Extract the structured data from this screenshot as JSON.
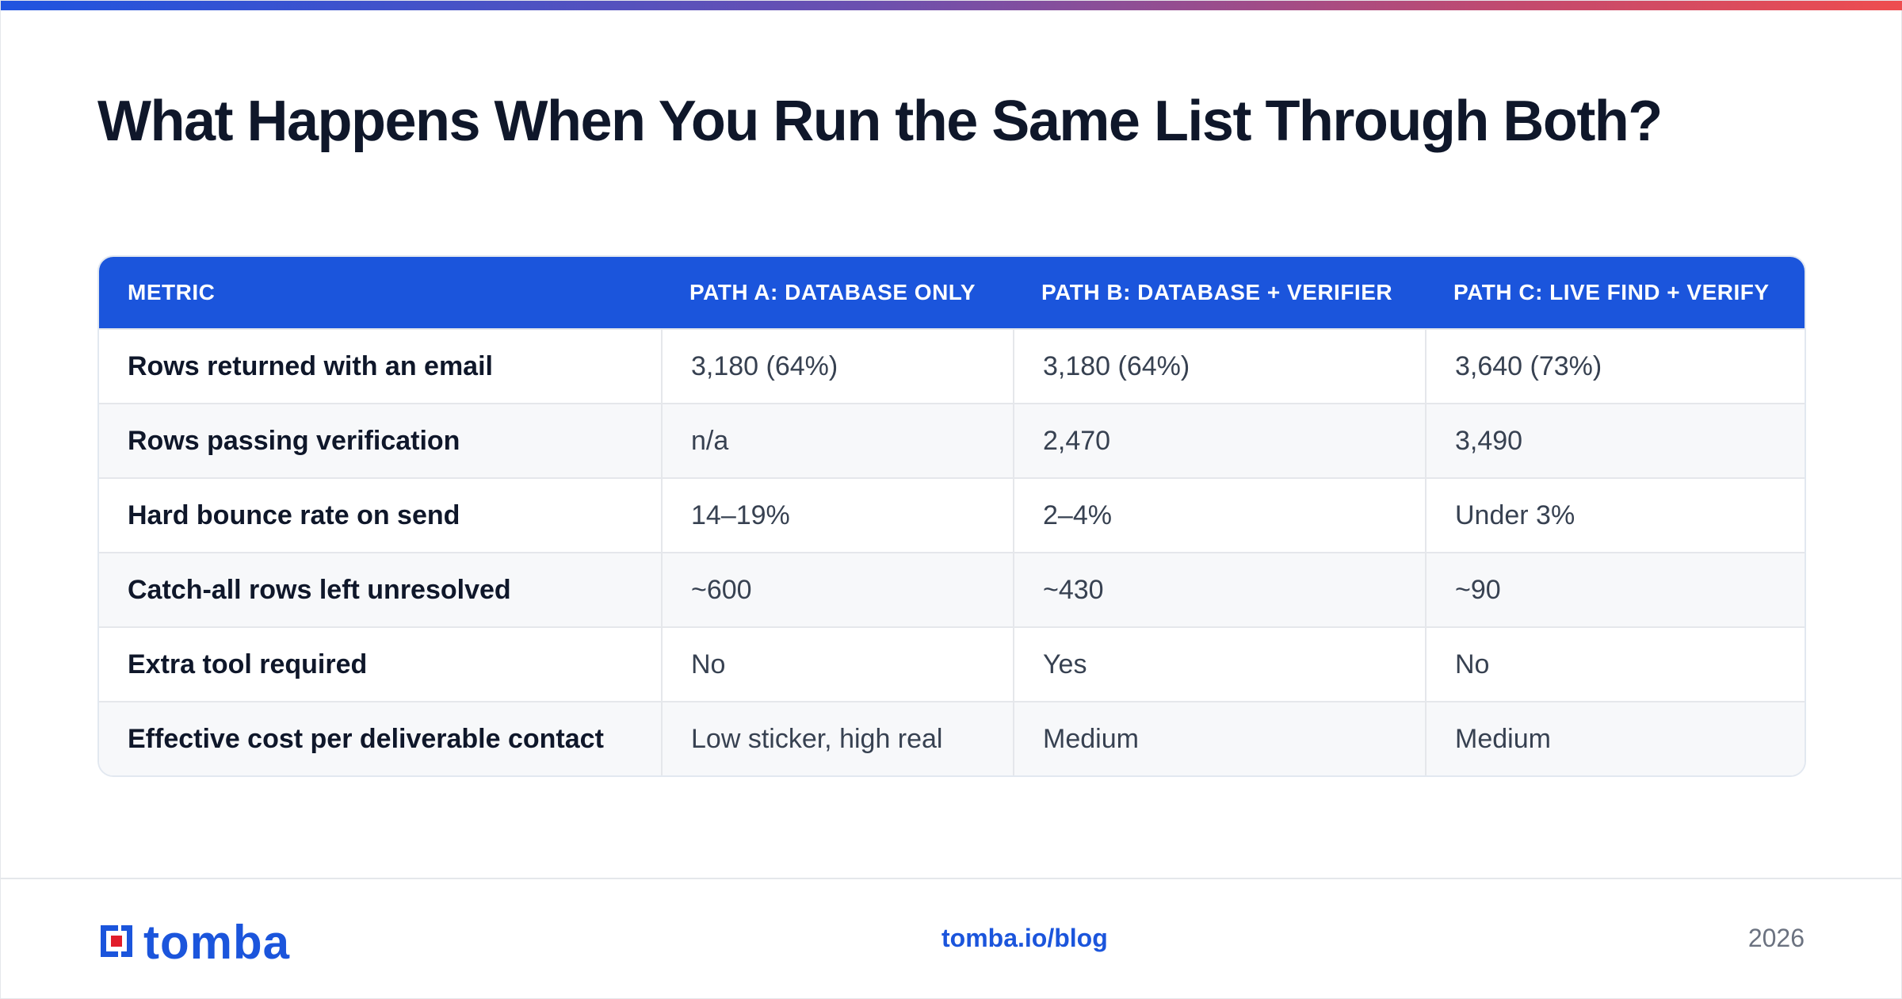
{
  "title": "What Happens When You Run the Same List Through Both?",
  "table": {
    "headers": [
      "METRIC",
      "PATH A: DATABASE ONLY",
      "PATH B: DATABASE + VERIFIER",
      "PATH C: LIVE FIND + VERIFY"
    ],
    "rows": [
      [
        "Rows returned with an email",
        "3,180 (64%)",
        "3,180 (64%)",
        "3,640 (73%)"
      ],
      [
        "Rows passing verification",
        "n/a",
        "2,470",
        "3,490"
      ],
      [
        "Hard bounce rate on send",
        "14–19%",
        "2–4%",
        "Under 3%"
      ],
      [
        "Catch-all rows left unresolved",
        "~600",
        "~430",
        "~90"
      ],
      [
        "Extra tool required",
        "No",
        "Yes",
        "No"
      ],
      [
        "Effective cost per deliverable contact",
        "Low sticker, high real",
        "Medium",
        "Medium"
      ]
    ]
  },
  "footer": {
    "logo_text": "tomba",
    "link": "tomba.io/blog",
    "year": "2026"
  },
  "colors": {
    "accent": "#1b55dc",
    "logo_red": "#e11d2a",
    "header_text": "#ffffff",
    "alt_row": "#f7f8fa"
  },
  "icons": {
    "logo_mark": "tomba-logo-icon"
  }
}
